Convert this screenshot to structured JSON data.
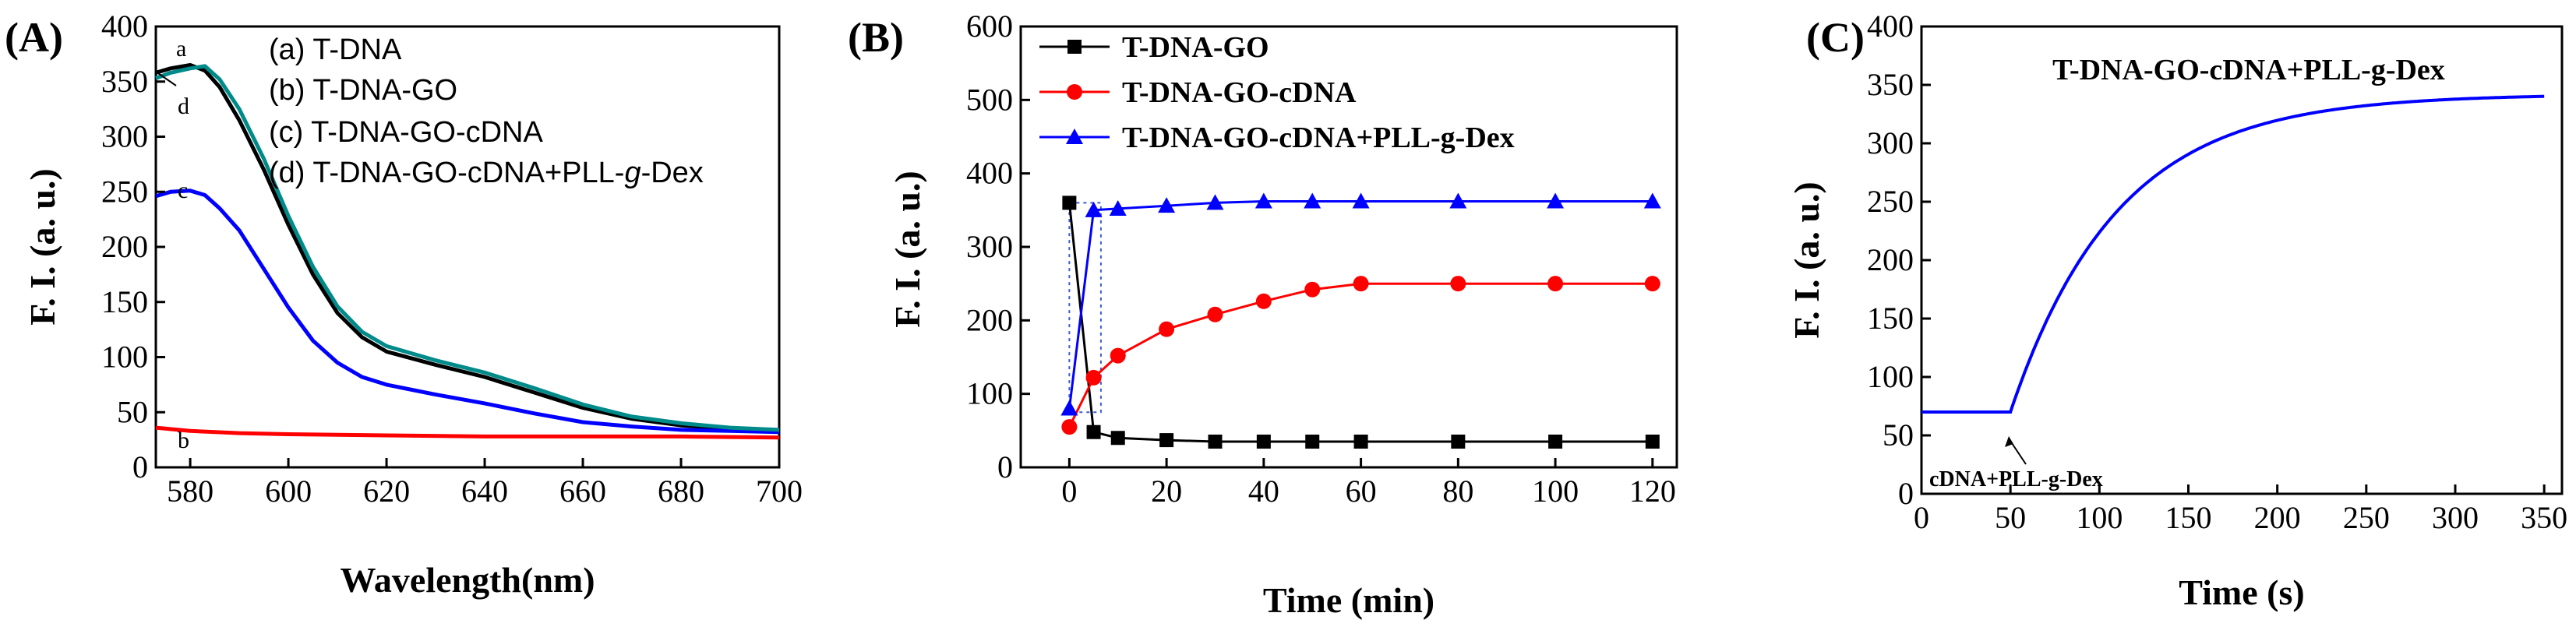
{
  "chart_data": [
    {
      "panel": "(A)",
      "type": "line",
      "xlabel": "Wavelength(nm)",
      "ylabel": "F. I. (a. u.)",
      "xlim": [
        573,
        700
      ],
      "ylim": [
        0,
        400
      ],
      "xticks": [
        580,
        600,
        620,
        640,
        660,
        680,
        700
      ],
      "yticks": [
        0,
        50,
        100,
        150,
        200,
        250,
        300,
        350,
        400
      ],
      "legend": [
        "(a) T-DNA",
        "(b) T-DNA-GO",
        "(c) T-DNA-GO-cDNA",
        "(d) T-DNA-GO-cDNA+PLL-g-Dex"
      ],
      "legend_italic_part": "g",
      "series": [
        {
          "name": "a",
          "label": "a",
          "color": "#000000",
          "x": [
            573,
            576,
            580,
            583,
            586,
            590,
            595,
            600,
            605,
            610,
            615,
            620,
            630,
            640,
            650,
            660,
            670,
            680,
            690,
            700
          ],
          "y": [
            358,
            362,
            365,
            360,
            345,
            315,
            270,
            220,
            175,
            140,
            118,
            105,
            93,
            82,
            68,
            54,
            44,
            38,
            35,
            33
          ]
        },
        {
          "name": "b",
          "label": "b",
          "color": "#ff0000",
          "x": [
            573,
            580,
            590,
            600,
            620,
            640,
            660,
            680,
            700
          ],
          "y": [
            36,
            33,
            31,
            30,
            29,
            28,
            28,
            28,
            27
          ]
        },
        {
          "name": "c",
          "label": "c",
          "color": "#0000ff",
          "x": [
            573,
            576,
            580,
            583,
            586,
            590,
            595,
            600,
            605,
            610,
            615,
            620,
            630,
            640,
            650,
            660,
            670,
            680,
            690,
            700
          ],
          "y": [
            246,
            250,
            251,
            247,
            235,
            215,
            180,
            145,
            115,
            95,
            82,
            75,
            66,
            58,
            49,
            41,
            37,
            34,
            33,
            32
          ]
        },
        {
          "name": "d",
          "label": "d",
          "color": "#008b8b",
          "x": [
            573,
            576,
            580,
            583,
            586,
            590,
            595,
            600,
            605,
            610,
            615,
            620,
            630,
            640,
            650,
            660,
            670,
            680,
            690,
            700
          ],
          "y": [
            353,
            358,
            362,
            364,
            352,
            325,
            280,
            228,
            182,
            146,
            123,
            110,
            97,
            86,
            72,
            57,
            46,
            40,
            36,
            34
          ]
        }
      ]
    },
    {
      "panel": "(B)",
      "type": "line",
      "xlabel": "Time (min)",
      "ylabel": "F. I. (a. u.)",
      "xlim": [
        -10,
        125
      ],
      "ylim": [
        0,
        600
      ],
      "xticks": [
        0,
        20,
        40,
        60,
        80,
        100,
        120
      ],
      "yticks": [
        0,
        100,
        200,
        300,
        400,
        500,
        600
      ],
      "series": [
        {
          "name": "T-DNA-GO",
          "color": "#000000",
          "marker": "square",
          "x": [
            0,
            5,
            10,
            20,
            30,
            40,
            50,
            60,
            80,
            100,
            120
          ],
          "y": [
            360,
            48,
            40,
            37,
            35,
            35,
            35,
            35,
            35,
            35,
            35
          ]
        },
        {
          "name": "T-DNA-GO-cDNA",
          "color": "#ff0000",
          "marker": "circle",
          "x": [
            0,
            5,
            10,
            20,
            30,
            40,
            50,
            60,
            80,
            100,
            120
          ],
          "y": [
            55,
            122,
            152,
            188,
            208,
            226,
            242,
            250,
            250,
            250,
            250
          ]
        },
        {
          "name": "T-DNA-GO-cDNA+PLL-g-Dex",
          "color": "#0000ff",
          "marker": "triangle",
          "x": [
            0,
            5,
            10,
            20,
            30,
            40,
            50,
            60,
            80,
            100,
            120
          ],
          "y": [
            80,
            350,
            352,
            356,
            360,
            362,
            362,
            362,
            362,
            362,
            362
          ]
        }
      ]
    },
    {
      "panel": "(C)",
      "type": "line",
      "title": "T-DNA-GO-cDNA+PLL-g-Dex",
      "xlabel": "Time (s)",
      "ylabel": "F. I. (a. u.)",
      "xlim": [
        0,
        360
      ],
      "ylim": [
        0,
        400
      ],
      "xticks": [
        0,
        50,
        100,
        150,
        200,
        250,
        300,
        350
      ],
      "yticks": [
        0,
        50,
        100,
        150,
        200,
        250,
        300,
        350,
        400
      ],
      "annotation": "cDNA+PLL-g-Dex",
      "annotation_x": 50,
      "series": [
        {
          "name": "T-DNA-GO-cDNA+PLL-g-Dex",
          "color": "#0000ff",
          "baseline": 70,
          "plateau": 342,
          "start": 50,
          "end": 350,
          "rise_constant": 60
        }
      ]
    }
  ]
}
